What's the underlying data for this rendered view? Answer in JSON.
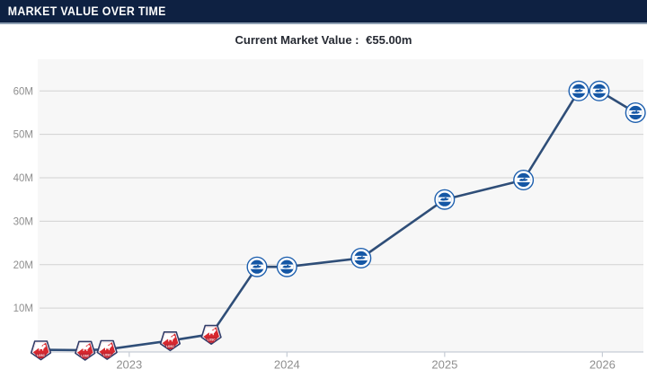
{
  "header": {
    "title": "MARKET VALUE OVER TIME",
    "bar_color": "#0e2142",
    "bar_border_color": "#8e9fb3"
  },
  "subtitle": {
    "label": "Current Market Value :",
    "value": "€55.00m"
  },
  "chart_data": {
    "type": "line",
    "title": "Market value over time",
    "xlabel": "",
    "ylabel": "",
    "unit": "€ million",
    "x_tick_labels": [
      "2023",
      "2024",
      "2025",
      "2026"
    ],
    "x_ticks": [
      2023,
      2024,
      2025,
      2026
    ],
    "y_ticks": [
      10,
      20,
      30,
      40,
      50,
      60
    ],
    "y_tick_labels": [
      "10M",
      "20M",
      "30M",
      "40M",
      "50M",
      "60M"
    ],
    "xlim": [
      2022.42,
      2026.26
    ],
    "ylim": [
      0,
      67.3
    ],
    "grid": true,
    "legend": "none",
    "colors": {
      "line": "#2f4e78",
      "plot_bg": "#f7f7f7",
      "gridline": "#d2d2d2",
      "axis_line": "#c6ccd5",
      "axis_text": "#8f8f8f",
      "lille_red": "#d7282f",
      "lille_band_red": "#c02430",
      "lille_navy": "#323c68",
      "brighton_blue": "#1557a5",
      "brighton_ring": "#1d5fae"
    },
    "marker_clubs": {
      "lille": "LOSC Lille",
      "brighton": "Brighton & Hove Albion"
    },
    "series": [
      {
        "name": "Market value",
        "points": [
          {
            "x": 2022.44,
            "y": 0.4,
            "club": "lille"
          },
          {
            "x": 2022.72,
            "y": 0.3,
            "club": "lille"
          },
          {
            "x": 2022.86,
            "y": 0.5,
            "club": "lille"
          },
          {
            "x": 2023.26,
            "y": 2.5,
            "club": "lille"
          },
          {
            "x": 2023.52,
            "y": 4.0,
            "club": "lille"
          },
          {
            "x": 2023.81,
            "y": 19.5,
            "club": "brighton"
          },
          {
            "x": 2024.0,
            "y": 19.5,
            "club": "brighton"
          },
          {
            "x": 2024.47,
            "y": 21.5,
            "club": "brighton"
          },
          {
            "x": 2025.0,
            "y": 35.0,
            "club": "brighton"
          },
          {
            "x": 2025.5,
            "y": 39.5,
            "club": "brighton"
          },
          {
            "x": 2025.85,
            "y": 60.0,
            "club": "brighton"
          },
          {
            "x": 2025.98,
            "y": 60.0,
            "club": "brighton"
          },
          {
            "x": 2026.21,
            "y": 55.0,
            "club": "brighton"
          }
        ]
      }
    ]
  }
}
